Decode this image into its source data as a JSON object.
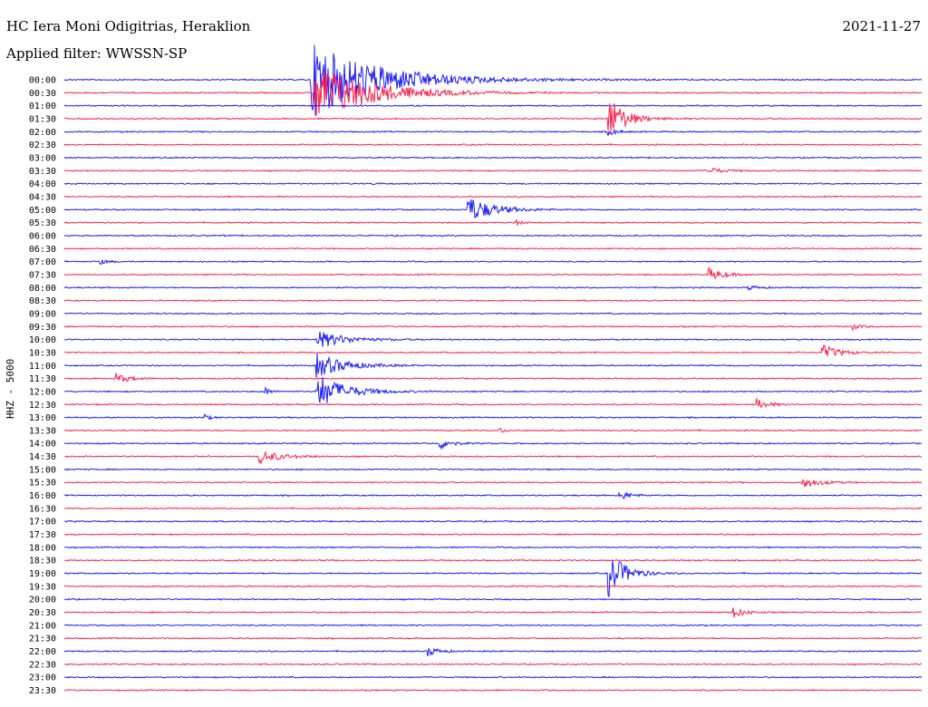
{
  "header": {
    "station": "HC Iera Moni Odigitrias, Heraklion",
    "filter": "Applied filter: WWSSN-SP",
    "date": "2021-11-27",
    "channel_label": "HHZ - 5000"
  },
  "colors": {
    "even_row": "#1a1aff",
    "odd_row": "#ff1f4b",
    "background": "#ffffff"
  },
  "chart_data": {
    "type": "line",
    "title": "HC Iera Moni Odigitrias, Heraklion",
    "subtitle": "Applied filter: WWSSN-SP",
    "ylabel": "HHZ - 5000",
    "xlabel": "",
    "grid": false,
    "row_labels": [
      "00:00",
      "00:30",
      "01:00",
      "01:30",
      "02:00",
      "02:30",
      "03:00",
      "03:30",
      "04:00",
      "04:30",
      "05:00",
      "05:30",
      "06:00",
      "06:30",
      "07:00",
      "07:30",
      "08:00",
      "08:30",
      "09:00",
      "09:30",
      "10:00",
      "10:30",
      "11:00",
      "11:30",
      "12:00",
      "12:30",
      "13:00",
      "13:30",
      "14:00",
      "14:30",
      "15:00",
      "15:30",
      "16:00",
      "16:30",
      "17:00",
      "17:30",
      "18:00",
      "18:30",
      "19:00",
      "19:30",
      "20:00",
      "20:30",
      "21:00",
      "21:30",
      "22:00",
      "22:30",
      "23:00",
      "23:30"
    ],
    "row_minutes": 30,
    "events": [
      {
        "row": 0,
        "minute": 8.6,
        "amplitude": 6,
        "duration": 5
      },
      {
        "row": 1,
        "minute": 8.7,
        "amplitude": 5,
        "duration": 4
      },
      {
        "row": 3,
        "minute": 19.0,
        "amplitude": 4,
        "duration": 1.2
      },
      {
        "row": 4,
        "minute": 19.0,
        "amplitude": 0.8,
        "duration": 0.6
      },
      {
        "row": 7,
        "minute": 22.5,
        "amplitude": 0.6,
        "duration": 1.0
      },
      {
        "row": 8,
        "minute": 10.8,
        "amplitude": 0.4,
        "duration": 0.3
      },
      {
        "row": 10,
        "minute": 14.1,
        "amplitude": 2.2,
        "duration": 1.8
      },
      {
        "row": 11,
        "minute": 15.7,
        "amplitude": 0.6,
        "duration": 0.5
      },
      {
        "row": 14,
        "minute": 1.2,
        "amplitude": 0.5,
        "duration": 0.6
      },
      {
        "row": 15,
        "minute": 22.5,
        "amplitude": 1.2,
        "duration": 1.0
      },
      {
        "row": 16,
        "minute": 23.9,
        "amplitude": 0.4,
        "duration": 0.8
      },
      {
        "row": 19,
        "minute": 27.5,
        "amplitude": 0.6,
        "duration": 0.6
      },
      {
        "row": 20,
        "minute": 8.8,
        "amplitude": 1.5,
        "duration": 2.0
      },
      {
        "row": 21,
        "minute": 26.5,
        "amplitude": 1.3,
        "duration": 1.2
      },
      {
        "row": 22,
        "minute": 8.8,
        "amplitude": 2.0,
        "duration": 2.0
      },
      {
        "row": 23,
        "minute": 1.8,
        "amplitude": 0.8,
        "duration": 1.0
      },
      {
        "row": 24,
        "minute": 8.8,
        "amplitude": 3.0,
        "duration": 2.0
      },
      {
        "row": 24,
        "minute": 7.0,
        "amplitude": 0.8,
        "duration": 0.4
      },
      {
        "row": 25,
        "minute": 24.2,
        "amplitude": 1.0,
        "duration": 0.8
      },
      {
        "row": 26,
        "minute": 4.9,
        "amplitude": 0.5,
        "duration": 0.4
      },
      {
        "row": 27,
        "minute": 15.2,
        "amplitude": 0.6,
        "duration": 0.4
      },
      {
        "row": 28,
        "minute": 13.1,
        "amplitude": 1.0,
        "duration": 0.8
      },
      {
        "row": 29,
        "minute": 6.8,
        "amplitude": 1.1,
        "duration": 1.6
      },
      {
        "row": 31,
        "minute": 25.8,
        "amplitude": 1.0,
        "duration": 1.2
      },
      {
        "row": 32,
        "minute": 19.4,
        "amplitude": 0.8,
        "duration": 0.8
      },
      {
        "row": 38,
        "minute": 19.0,
        "amplitude": 4.0,
        "duration": 1.2
      },
      {
        "row": 41,
        "minute": 23.4,
        "amplitude": 0.9,
        "duration": 0.8
      },
      {
        "row": 44,
        "minute": 12.7,
        "amplitude": 0.8,
        "duration": 0.8
      }
    ]
  }
}
